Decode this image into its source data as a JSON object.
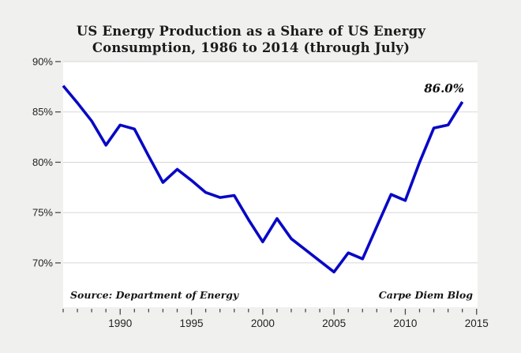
{
  "colors": {
    "background": "#f0f0ee",
    "plot_background": "#ffffff",
    "grid": "#d8d8d8",
    "tick": "#4a4a4a",
    "line": "#0808c6",
    "text": "#1f1f1f"
  },
  "chart_data": {
    "type": "line",
    "title": "US Energy Production as a Share of US Energy Consumption, 1986 to 2014 (through July)",
    "title_lines": [
      "US Energy Production as a Share of US Energy",
      "Consumption, 1986 to 2014 (through July)"
    ],
    "series_name": "US energy production as percent of US energy consumption",
    "x": [
      1986,
      1987,
      1988,
      1989,
      1990,
      1991,
      1992,
      1993,
      1994,
      1995,
      1996,
      1997,
      1998,
      1999,
      2000,
      2001,
      2002,
      2003,
      2004,
      2005,
      2006,
      2007,
      2008,
      2009,
      2010,
      2011,
      2012,
      2013,
      2014
    ],
    "values": [
      87.6,
      85.9,
      84.1,
      81.7,
      83.7,
      83.3,
      80.6,
      78.0,
      79.3,
      78.2,
      77.0,
      76.5,
      76.7,
      74.3,
      72.1,
      74.4,
      72.4,
      71.3,
      70.2,
      69.1,
      71.0,
      70.4,
      73.6,
      76.8,
      76.2,
      80.0,
      83.4,
      83.7,
      86.0
    ],
    "xlim": [
      1986,
      2015.07
    ],
    "ylim": [
      65.6,
      90
    ],
    "y_ticks": [
      70,
      75,
      80,
      85,
      90
    ],
    "y_tick_labels": [
      "70%",
      "75%",
      "80%",
      "85%",
      "90%"
    ],
    "x_major_ticks": [
      1990,
      1995,
      2000,
      2005,
      2010,
      2015
    ],
    "x_major_tick_labels": [
      "1990",
      "1995",
      "2000",
      "2005",
      "2010",
      "2015"
    ],
    "x_minor_tick_step": 1,
    "grid": "horizontal",
    "legend": "none",
    "line_color": "#0808c6",
    "annotation": {
      "text": "86.0%",
      "x": 2014,
      "y": 86.0
    },
    "source_note": "Source: Department of Energy",
    "credit": "Carpe Diem Blog"
  }
}
